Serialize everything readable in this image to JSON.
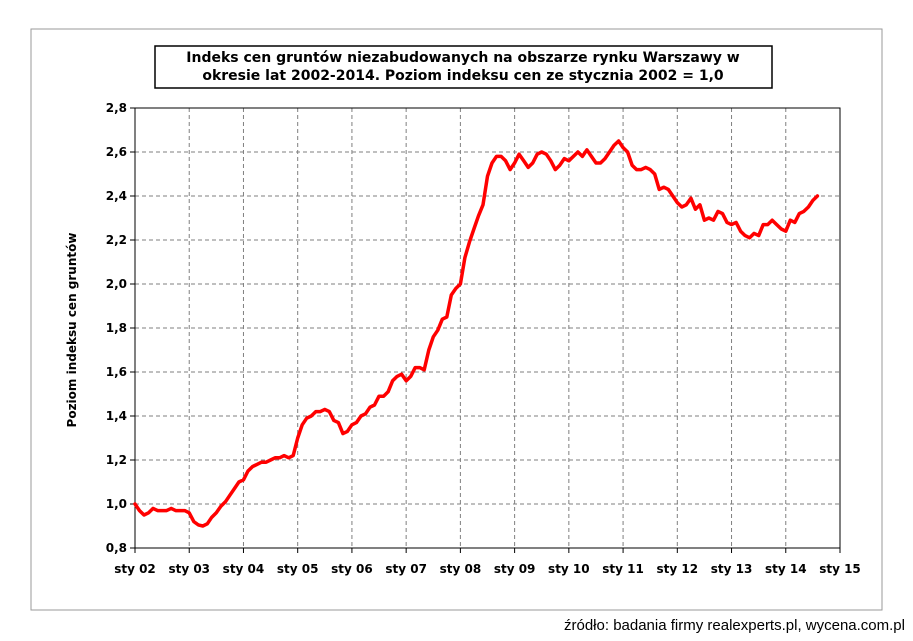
{
  "chart_data": {
    "type": "line",
    "title_lines": [
      "Indeks cen gruntów niezabudowanych na obszarze rynku Warszawy w",
      "okresie lat 2002-2014. Poziom indeksu cen ze stycznia 2002 = 1,0"
    ],
    "ylabel": "Poziom indeksu cen gruntów",
    "xlabel": "",
    "source": "źródło: badania firmy realexperts.pl, wycena.com.pl",
    "ylim": [
      0.8,
      2.8
    ],
    "yticks": [
      0.8,
      1.0,
      1.2,
      1.4,
      1.6,
      1.8,
      2.0,
      2.2,
      2.4,
      2.6,
      2.8
    ],
    "ytick_labels": [
      "0,8",
      "1,0",
      "1,2",
      "1,4",
      "1,6",
      "1,8",
      "2,0",
      "2,2",
      "2,4",
      "2,6",
      "2,8"
    ],
    "xlim": [
      "2002-01",
      "2015-01"
    ],
    "xtick_labels": [
      "sty 02",
      "sty 03",
      "sty 04",
      "sty 05",
      "sty 06",
      "sty 07",
      "sty 08",
      "sty 09",
      "sty 10",
      "sty 11",
      "sty 12",
      "sty 13",
      "sty 14",
      "sty 15"
    ],
    "grid": "horizontal-and-vertical-dashed",
    "line_color": "#ff0000",
    "series": [
      {
        "x": [
          "2002-01",
          "2002-02",
          "2002-03",
          "2002-04",
          "2002-05",
          "2002-06",
          "2002-07",
          "2002-08",
          "2002-09",
          "2002-10",
          "2002-11",
          "2002-12",
          "2003-01",
          "2003-02",
          "2003-03",
          "2003-04",
          "2003-05",
          "2003-06",
          "2003-07",
          "2003-08",
          "2003-09",
          "2003-10",
          "2003-11",
          "2003-12",
          "2004-01",
          "2004-02",
          "2004-03",
          "2004-04",
          "2004-05",
          "2004-06",
          "2004-07",
          "2004-08",
          "2004-09",
          "2004-10",
          "2004-11",
          "2004-12",
          "2005-01",
          "2005-02",
          "2005-03",
          "2005-04",
          "2005-05",
          "2005-06",
          "2005-07",
          "2005-08",
          "2005-09",
          "2005-10",
          "2005-11",
          "2005-12",
          "2006-01",
          "2006-02",
          "2006-03",
          "2006-04",
          "2006-05",
          "2006-06",
          "2006-07",
          "2006-08",
          "2006-09",
          "2006-10",
          "2006-11",
          "2006-12",
          "2007-01",
          "2007-02",
          "2007-03",
          "2007-04",
          "2007-05",
          "2007-06",
          "2007-07",
          "2007-08",
          "2007-09",
          "2007-10",
          "2007-11",
          "2007-12",
          "2008-01",
          "2008-02",
          "2008-03",
          "2008-04",
          "2008-05",
          "2008-06",
          "2008-07",
          "2008-08",
          "2008-09",
          "2008-10",
          "2008-11",
          "2008-12",
          "2009-01",
          "2009-02",
          "2009-03",
          "2009-04",
          "2009-05",
          "2009-06",
          "2009-07",
          "2009-08",
          "2009-09",
          "2009-10",
          "2009-11",
          "2009-12",
          "2010-01",
          "2010-02",
          "2010-03",
          "2010-04",
          "2010-05",
          "2010-06",
          "2010-07",
          "2010-08",
          "2010-09",
          "2010-10",
          "2010-11",
          "2010-12",
          "2011-01",
          "2011-02",
          "2011-03",
          "2011-04",
          "2011-05",
          "2011-06",
          "2011-07",
          "2011-08",
          "2011-09",
          "2011-10",
          "2011-11",
          "2011-12",
          "2012-01",
          "2012-02",
          "2012-03",
          "2012-04",
          "2012-05",
          "2012-06",
          "2012-07",
          "2012-08",
          "2012-09",
          "2012-10",
          "2012-11",
          "2012-12",
          "2013-01",
          "2013-02",
          "2013-03",
          "2013-04",
          "2013-05",
          "2013-06",
          "2013-07",
          "2013-08",
          "2013-09",
          "2013-10",
          "2013-11",
          "2013-12",
          "2014-01",
          "2014-02",
          "2014-03",
          "2014-04",
          "2014-05",
          "2014-06",
          "2014-07",
          "2014-08"
        ],
        "y": [
          1.0,
          0.97,
          0.95,
          0.96,
          0.98,
          0.97,
          0.97,
          0.97,
          0.98,
          0.97,
          0.97,
          0.97,
          0.96,
          0.92,
          0.905,
          0.9,
          0.91,
          0.94,
          0.96,
          0.99,
          1.01,
          1.04,
          1.07,
          1.1,
          1.11,
          1.15,
          1.17,
          1.18,
          1.19,
          1.19,
          1.2,
          1.21,
          1.21,
          1.22,
          1.21,
          1.22,
          1.3,
          1.36,
          1.39,
          1.4,
          1.42,
          1.42,
          1.43,
          1.42,
          1.38,
          1.37,
          1.32,
          1.33,
          1.36,
          1.37,
          1.4,
          1.41,
          1.44,
          1.45,
          1.49,
          1.49,
          1.51,
          1.56,
          1.58,
          1.59,
          1.56,
          1.58,
          1.62,
          1.62,
          1.61,
          1.7,
          1.76,
          1.79,
          1.84,
          1.85,
          1.95,
          1.98,
          2.0,
          2.12,
          2.19,
          2.25,
          2.31,
          2.36,
          2.49,
          2.55,
          2.58,
          2.58,
          2.56,
          2.52,
          2.55,
          2.59,
          2.56,
          2.53,
          2.55,
          2.59,
          2.6,
          2.59,
          2.56,
          2.52,
          2.54,
          2.57,
          2.56,
          2.58,
          2.6,
          2.58,
          2.61,
          2.58,
          2.55,
          2.55,
          2.57,
          2.6,
          2.63,
          2.65,
          2.62,
          2.6,
          2.54,
          2.52,
          2.52,
          2.53,
          2.52,
          2.5,
          2.43,
          2.44,
          2.43,
          2.4,
          2.37,
          2.35,
          2.36,
          2.39,
          2.34,
          2.36,
          2.29,
          2.3,
          2.29,
          2.33,
          2.32,
          2.28,
          2.27,
          2.28,
          2.24,
          2.22,
          2.21,
          2.23,
          2.22,
          2.27,
          2.27,
          2.29,
          2.27,
          2.25,
          2.24,
          2.29,
          2.28,
          2.32,
          2.33,
          2.35,
          2.38,
          2.4
        ]
      }
    ]
  }
}
